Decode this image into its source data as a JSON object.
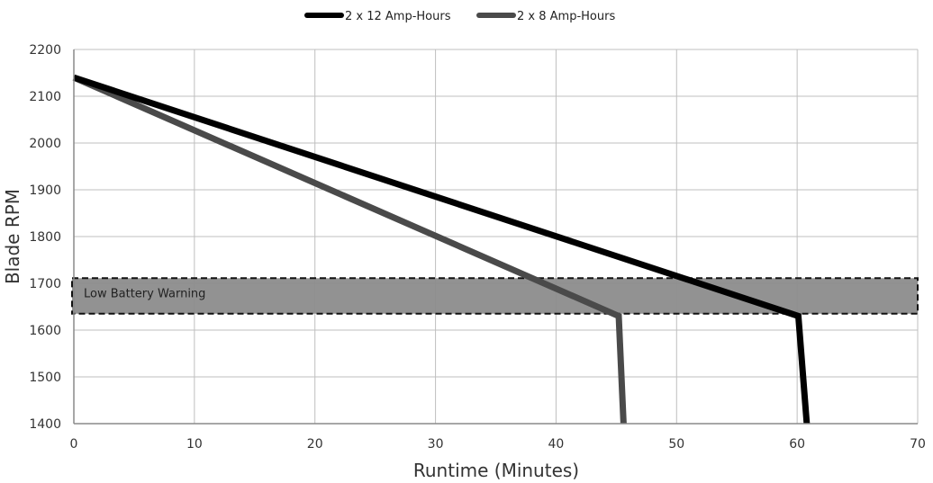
{
  "chart_data": {
    "type": "line",
    "title": "",
    "xlabel": "Runtime (Minutes)",
    "ylabel": "Blade RPM",
    "xlim": [
      0,
      70
    ],
    "ylim": [
      1400,
      2200
    ],
    "x_ticks": [
      0,
      10,
      20,
      30,
      40,
      50,
      60,
      70
    ],
    "y_ticks": [
      1400,
      1500,
      1600,
      1700,
      1800,
      1900,
      2000,
      2100,
      2200
    ],
    "grid": true,
    "legend_position": "top-center",
    "series": [
      {
        "name": "2 x 12 Amp-Hours",
        "color": "#000000",
        "points": [
          [
            0,
            2140
          ],
          [
            60.1,
            1630
          ],
          [
            60.8,
            1400
          ]
        ]
      },
      {
        "name": "2 x 8 Amp-Hours",
        "color": "#4a4a4a",
        "points": [
          [
            0,
            2140
          ],
          [
            45.2,
            1630
          ],
          [
            45.6,
            1400
          ]
        ]
      }
    ],
    "annotations": [
      {
        "type": "band",
        "label": "Low Battery Warning",
        "y_range": [
          1635,
          1711
        ],
        "x_range": [
          0,
          70
        ],
        "fill": "#8c8c8c",
        "border": "dashed"
      }
    ]
  }
}
